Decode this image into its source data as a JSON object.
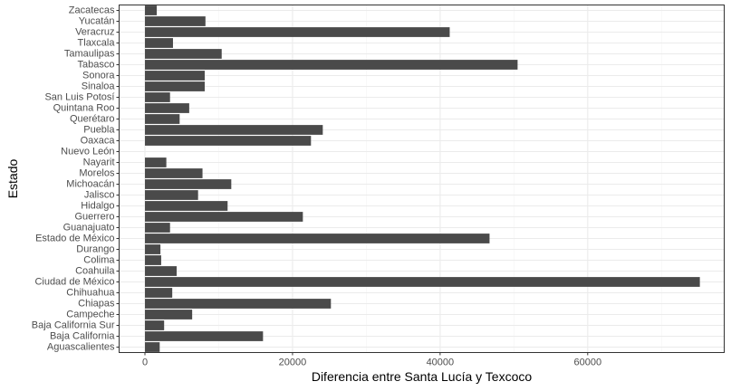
{
  "chart_data": {
    "type": "bar",
    "orientation": "horizontal",
    "xlabel": "Diferencia entre Santa Lucía y Texcoco",
    "ylabel": "Estado",
    "xlim": [
      -3500,
      78500
    ],
    "xticks": [
      0,
      20000,
      40000,
      60000
    ],
    "xtick_labels": [
      "0",
      "20000",
      "40000",
      "60000"
    ],
    "grid": true,
    "categories": [
      "Aguascalientes",
      "Baja California",
      "Baja California Sur",
      "Campeche",
      "Chiapas",
      "Chihuahua",
      "Ciudad de México",
      "Coahuila",
      "Colima",
      "Durango",
      "Estado de México",
      "Guanajuato",
      "Guerrero",
      "Hidalgo",
      "Jalisco",
      "Michoacán",
      "Morelos",
      "Nayarit",
      "Nuevo León",
      "Oaxaca",
      "Puebla",
      "Querétaro",
      "Quintana Roo",
      "San Luis Potosí",
      "Sinaloa",
      "Sonora",
      "Tabasco",
      "Tamaulipas",
      "Tlaxcala",
      "Veracruz",
      "Yucatán",
      "Zacatecas"
    ],
    "values": [
      2000,
      16000,
      2600,
      6400,
      25200,
      3700,
      75200,
      4300,
      2200,
      2100,
      46700,
      3400,
      21400,
      11200,
      7200,
      11700,
      7800,
      2900,
      0,
      22500,
      24100,
      4700,
      6000,
      3400,
      8100,
      8100,
      50500,
      10400,
      3800,
      41300,
      8200,
      1600
    ]
  }
}
